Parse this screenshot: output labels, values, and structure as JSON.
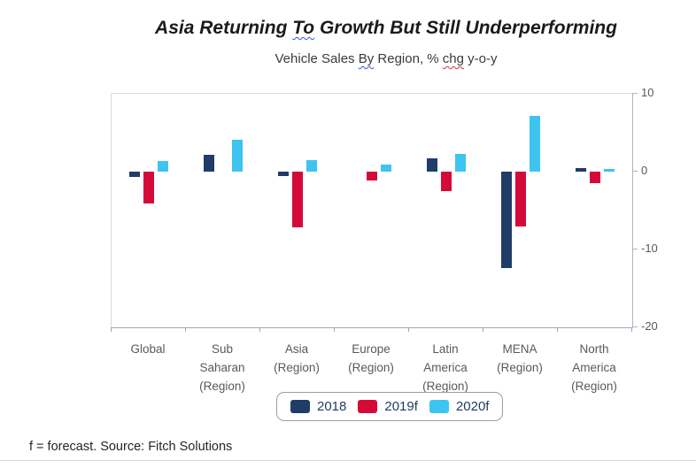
{
  "title": {
    "pre": "Asia Returning ",
    "squiggle": "To",
    "post": " Growth But Still Underperforming",
    "full": "Asia Returning To Growth But Still Underperforming"
  },
  "subtitle": {
    "p1": "Vehicle Sales ",
    "sq1": "By",
    "p2": " Region, % ",
    "sq2": "chg",
    "p3": " y-o-y",
    "full": "Vehicle Sales By Region, % chg y-o-y"
  },
  "chart_data": {
    "type": "bar",
    "title": "Asia Returning To Growth But Still Underperforming",
    "subtitle": "Vehicle Sales By Region, % chg y-o-y",
    "categories": [
      "Global",
      "Sub Saharan (Region)",
      "Asia (Region)",
      "Europe (Region)",
      "Latin America (Region)",
      "MENA (Region)",
      "North America (Region)"
    ],
    "category_lines": [
      [
        "Global"
      ],
      [
        "Sub",
        "Saharan",
        "(Region)"
      ],
      [
        "Asia",
        "(Region)"
      ],
      [
        "Europe",
        "(Region)"
      ],
      [
        "Latin",
        "America",
        "(Region)"
      ],
      [
        "MENA",
        "(Region)"
      ],
      [
        "North",
        "America",
        "(Region)"
      ]
    ],
    "series": [
      {
        "name": "2018",
        "color": "#1F3D66",
        "values": [
          -0.7,
          2.2,
          -0.6,
          0.0,
          1.7,
          -12.4,
          0.4
        ]
      },
      {
        "name": "2019f",
        "color": "#D40B39",
        "values": [
          -4.1,
          0.0,
          -7.2,
          -1.1,
          -2.5,
          -7.0,
          -1.5
        ]
      },
      {
        "name": "2020f",
        "color": "#3EC4F0",
        "values": [
          1.4,
          4.1,
          1.5,
          0.9,
          2.3,
          7.2,
          0.3
        ]
      }
    ],
    "ylabel": "",
    "xlabel": "",
    "ylim": [
      -20,
      10
    ],
    "yticks": [
      10,
      0,
      -10,
      -20
    ],
    "grid": false,
    "legend_position": "bottom",
    "axis_side": "right"
  },
  "footer": {
    "note": "f = forecast. Source: Fitch Solutions"
  },
  "colors": {
    "series_2018": "#1F3D66",
    "series_2019f": "#D40B39",
    "series_2020f": "#3EC4F0",
    "axis_line": "#a9b7c6",
    "tick_text": "#595959",
    "legend_text": "#1F3A5F",
    "squiggle_blue": "#3355D9",
    "squiggle_red": "#CC3A2A"
  }
}
